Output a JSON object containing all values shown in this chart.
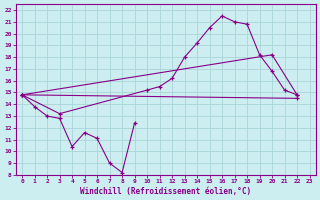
{
  "xlabel": "Windchill (Refroidissement éolien,°C)",
  "bg_color": "#cceef0",
  "grid_color": "#aad4d8",
  "line_color": "#880088",
  "xlim": [
    -0.5,
    23.5
  ],
  "ylim": [
    8,
    22.5
  ],
  "xticks": [
    0,
    1,
    2,
    3,
    4,
    5,
    6,
    7,
    8,
    9,
    10,
    11,
    12,
    13,
    14,
    15,
    16,
    17,
    18,
    19,
    20,
    21,
    22,
    23
  ],
  "yticks": [
    8,
    9,
    10,
    11,
    12,
    13,
    14,
    15,
    16,
    17,
    18,
    19,
    20,
    21,
    22
  ],
  "series": [
    {
      "x": [
        0,
        1,
        2,
        3,
        4,
        5,
        6,
        7,
        8,
        9
      ],
      "y": [
        14.8,
        13.8,
        13.0,
        12.8,
        10.4,
        11.6,
        11.1,
        9.0,
        8.2,
        12.4
      ]
    },
    {
      "x": [
        0,
        3,
        10,
        11,
        12,
        13,
        14,
        15,
        16,
        17,
        18,
        19,
        20,
        21,
        22
      ],
      "y": [
        14.8,
        13.2,
        15.2,
        15.5,
        16.2,
        18.0,
        19.2,
        20.5,
        21.5,
        21.0,
        20.8,
        18.2,
        16.8,
        15.2,
        14.8
      ]
    },
    {
      "x": [
        0,
        22
      ],
      "y": [
        14.8,
        14.5
      ]
    },
    {
      "x": [
        0,
        20,
        22
      ],
      "y": [
        14.8,
        18.2,
        14.8
      ]
    }
  ]
}
